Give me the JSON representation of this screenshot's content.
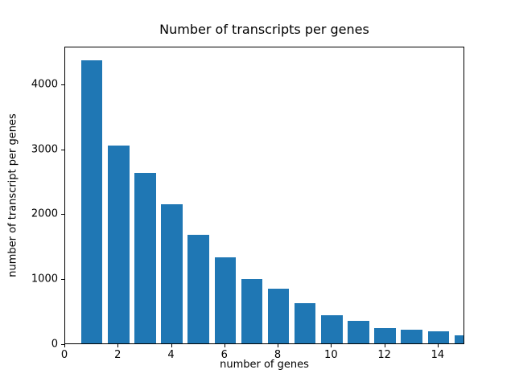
{
  "chart_data": {
    "type": "bar",
    "title": "Number of transcripts per genes",
    "xlabel": "number of genes",
    "ylabel": "number of transcript per genes",
    "x": [
      1,
      2,
      3,
      4,
      5,
      6,
      7,
      8,
      9,
      10,
      11,
      12,
      13,
      14,
      15
    ],
    "values": [
      4360,
      3050,
      2620,
      2140,
      1670,
      1330,
      990,
      840,
      620,
      430,
      350,
      240,
      215,
      185,
      120
    ],
    "bar_width": 0.8,
    "bar_color": "#1f77b4",
    "xlim": [
      0,
      15
    ],
    "ylim": [
      0,
      4580
    ],
    "xticks": [
      0,
      2,
      4,
      6,
      8,
      10,
      12,
      14
    ],
    "yticks": [
      0,
      1000,
      2000,
      3000,
      4000
    ],
    "grid": false,
    "legend": null,
    "background_color": "#ffffff",
    "text_color": "#000000"
  }
}
